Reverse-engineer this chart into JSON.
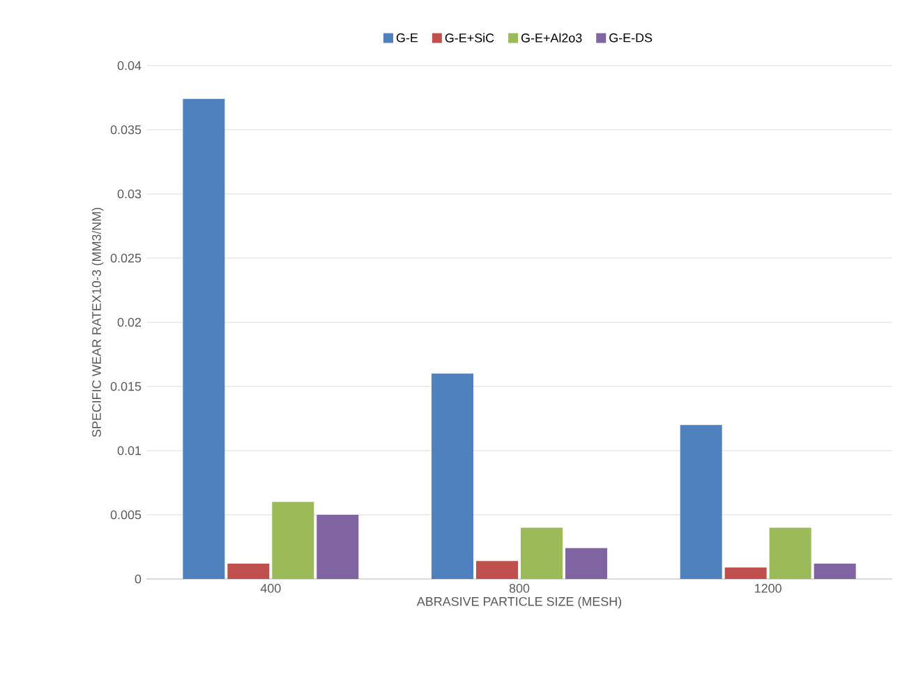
{
  "chart_data": {
    "type": "bar",
    "xlabel": "ABRASIVE PARTICLE SIZE (MESH)",
    "ylabel": "SPECIFIC WEAR RATEX10-3 (MM3/NM)",
    "categories": [
      "400",
      "800",
      "1200"
    ],
    "series": [
      {
        "name": "G-E",
        "color": "#4f81bd",
        "values": [
          0.0374,
          0.016,
          0.012
        ]
      },
      {
        "name": "G-E+SiC",
        "color": "#c0504d",
        "values": [
          0.0012,
          0.0014,
          0.0009
        ]
      },
      {
        "name": "G-E+Al2o3",
        "color": "#9bbb59",
        "values": [
          0.006,
          0.004,
          0.004
        ]
      },
      {
        "name": "G-E-DS",
        "color": "#8064a2",
        "values": [
          0.005,
          0.0024,
          0.0012
        ]
      }
    ],
    "ylim": [
      0,
      0.04
    ],
    "yticks": [
      0,
      0.005,
      0.01,
      0.015,
      0.02,
      0.025,
      0.03,
      0.035,
      0.04
    ],
    "grid": "y",
    "legend": "top"
  }
}
